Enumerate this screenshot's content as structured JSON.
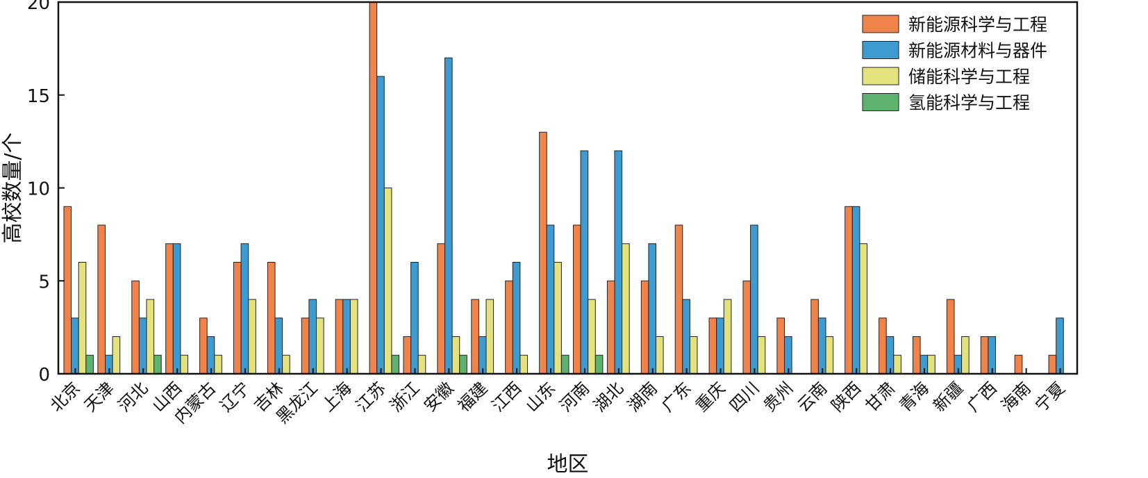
{
  "chart_data": {
    "type": "bar",
    "xlabel": "地区",
    "ylabel": "高校数量/个",
    "ylim": [
      0,
      20
    ],
    "yticks": [
      0,
      5,
      10,
      15,
      20
    ],
    "grid": false,
    "legend_position": "top-right",
    "categories": [
      "北京",
      "天津",
      "河北",
      "山西",
      "内蒙古",
      "辽宁",
      "吉林",
      "黑龙江",
      "上海",
      "江苏",
      "浙江",
      "安徽",
      "福建",
      "江西",
      "山东",
      "河南",
      "湖北",
      "湖南",
      "广东",
      "重庆",
      "四川",
      "贵州",
      "云南",
      "陕西",
      "甘肃",
      "青海",
      "新疆",
      "广西",
      "海南",
      "宁夏"
    ],
    "series": [
      {
        "name": "新能源科学与工程",
        "color": "#F0834A",
        "values": [
          9,
          8,
          5,
          7,
          3,
          6,
          6,
          3,
          4,
          20,
          2,
          7,
          4,
          5,
          13,
          8,
          5,
          5,
          8,
          3,
          5,
          3,
          4,
          9,
          3,
          2,
          4,
          2,
          1,
          1
        ]
      },
      {
        "name": "新能源材料与器件",
        "color": "#3E9BD0",
        "values": [
          3,
          1,
          3,
          7,
          2,
          7,
          3,
          4,
          4,
          16,
          6,
          17,
          2,
          6,
          8,
          12,
          12,
          7,
          4,
          3,
          8,
          2,
          3,
          9,
          2,
          1,
          1,
          2,
          0,
          3
        ]
      },
      {
        "name": "储能科学与工程",
        "color": "#E3E27E",
        "values": [
          6,
          2,
          4,
          1,
          1,
          4,
          1,
          3,
          4,
          10,
          1,
          2,
          4,
          1,
          6,
          4,
          7,
          2,
          2,
          4,
          2,
          0,
          2,
          7,
          1,
          1,
          2,
          0,
          0,
          0
        ]
      },
      {
        "name": "氢能科学与工程",
        "color": "#5DB36E",
        "values": [
          1,
          0,
          1,
          0,
          0,
          0,
          0,
          0,
          0,
          1,
          0,
          1,
          0,
          0,
          1,
          1,
          0,
          0,
          0,
          0,
          0,
          0,
          0,
          0,
          0,
          0,
          0,
          0,
          0,
          0
        ]
      }
    ]
  }
}
